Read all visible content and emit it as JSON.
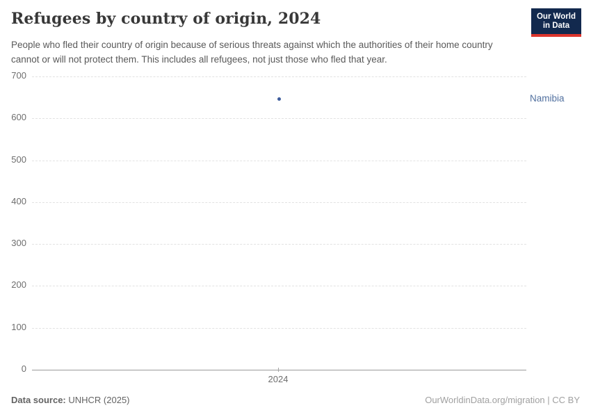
{
  "header": {
    "title": "Refugees by country of origin, 2024",
    "subtitle": "People who fled their country of origin because of serious threats against which the authorities of their home country cannot or will not protect them. This includes all refugees, not just those who fled that year.",
    "logo": {
      "line1": "Our World",
      "line2": "in Data"
    }
  },
  "chart_data": {
    "type": "scatter",
    "title": "Refugees by country of origin, 2024",
    "x": [
      2024
    ],
    "series": [
      {
        "name": "Namibia",
        "values": [
          646
        ],
        "color": "#3d5c9c",
        "label_color": "#51709f"
      }
    ],
    "xlabel": "",
    "ylabel": "",
    "ylim": [
      0,
      700
    ],
    "yticks": [
      0,
      100,
      200,
      300,
      400,
      500,
      600,
      700
    ],
    "xtick_labels": [
      "2024"
    ],
    "grid": "horizontal-dashed",
    "legend_position": "entity label right of plot"
  },
  "footer": {
    "source_label": "Data source:",
    "source_value": "UNHCR (2025)",
    "attribution": "OurWorldinData.org/migration | CC BY"
  },
  "colors": {
    "series": "#3d5c9c",
    "entity_label": "#51709f",
    "logo_background": "#12294e",
    "logo_accent_red": "#dc352c",
    "gridline": "#e2e2e2",
    "axis_line": "#9a9a9a",
    "title_text": "#383838",
    "subtitle_text": "#595959",
    "tick_text": "#6e6e6e",
    "attribution_text": "#a0a0a0"
  }
}
